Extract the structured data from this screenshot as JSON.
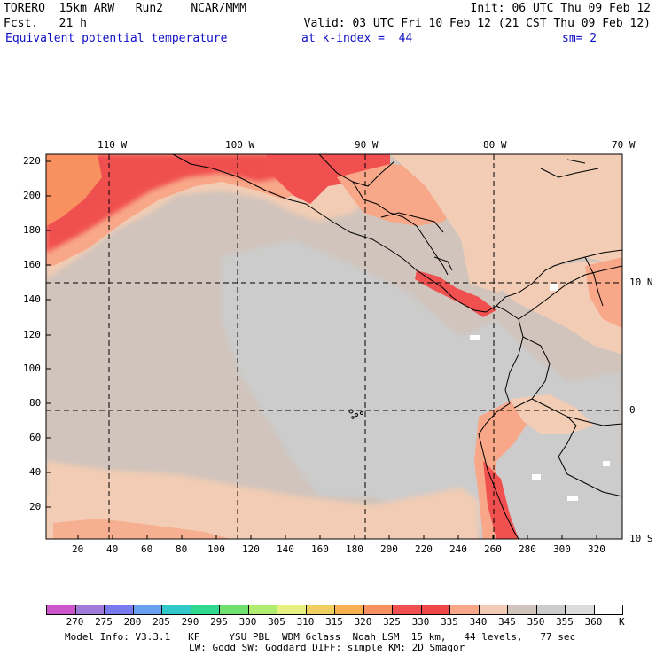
{
  "header": {
    "line1_left": "TORERO  15km ARW   Run2    NCAR/MMM",
    "line1_right": "Init: 06 UTC Thu 09 Feb 12",
    "line2_left": "Fcst.   21 h",
    "line2_right": "Valid: 03 UTC Fri 10 Feb 12 (21 CST Thu 09 Feb 12)",
    "field_name": "Equivalent potential temperature",
    "level_info": "at k-index =  44",
    "smoothing": "sm= 2"
  },
  "map": {
    "lon_labels": [
      "110 W",
      "100 W",
      "90 W",
      "80 W",
      "70 W"
    ],
    "lat_labels": [
      "10 N",
      "0",
      "10 S"
    ],
    "y_ticks": [
      "220",
      "200",
      "180",
      "160",
      "140",
      "120",
      "100",
      "80",
      "60",
      "40",
      "20"
    ],
    "x_ticks": [
      "20",
      "40",
      "60",
      "80",
      "100",
      "120",
      "140",
      "160",
      "180",
      "200",
      "220",
      "240",
      "260",
      "280",
      "300",
      "320"
    ]
  },
  "colorbar": {
    "unit": "K",
    "levels": [
      "270",
      "275",
      "280",
      "285",
      "290",
      "295",
      "300",
      "305",
      "310",
      "315",
      "320",
      "325",
      "330",
      "335",
      "340",
      "345",
      "350",
      "355",
      "360"
    ],
    "colors": [
      "#cc55cc",
      "#a07ad8",
      "#7a7af0",
      "#6aa0f0",
      "#30c8c8",
      "#30d890",
      "#70e070",
      "#b0ec70",
      "#e8f080",
      "#f0d060",
      "#f8b050",
      "#f89060",
      "#f05050",
      "#f04848",
      "#f8a888",
      "#f2ccb4",
      "#d0c4bc",
      "#cccccc",
      "#dcdcdc",
      "#ffffff"
    ]
  },
  "footer": {
    "line1": "Model Info: V3.3.1   KF     YSU PBL  WDM 6class  Noah LSM  15 km,   44 levels,   77 sec",
    "line2": "LW: Godd SW: Goddard DIFF: simple KM: 2D Smagor"
  }
}
